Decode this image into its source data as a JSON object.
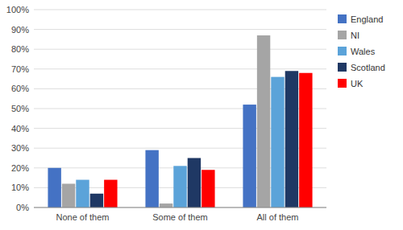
{
  "chart_data": {
    "type": "bar",
    "categories": [
      "None of them",
      "Some of them",
      "All of them"
    ],
    "series": [
      {
        "name": "England",
        "color": "#4472C4",
        "values": [
          0.2,
          0.29,
          0.52
        ]
      },
      {
        "name": "NI",
        "color": "#A5A5A5",
        "values": [
          0.12,
          0.02,
          0.87
        ]
      },
      {
        "name": "Wales",
        "color": "#5BA3D9",
        "values": [
          0.14,
          0.21,
          0.66
        ]
      },
      {
        "name": "Scotland",
        "color": "#1F3864",
        "values": [
          0.07,
          0.25,
          0.69
        ]
      },
      {
        "name": "UK",
        "color": "#FF0000",
        "values": [
          0.14,
          0.19,
          0.68
        ]
      }
    ],
    "ylim": [
      0,
      1
    ],
    "yticks": [
      {
        "value": 0,
        "label": "0%"
      },
      {
        "value": 0.1,
        "label": "10%"
      },
      {
        "value": 0.2,
        "label": "20%"
      },
      {
        "value": 0.3,
        "label": "30%"
      },
      {
        "value": 0.4,
        "label": "40%"
      },
      {
        "value": 0.5,
        "label": "50%"
      },
      {
        "value": 0.6,
        "label": "60%"
      },
      {
        "value": 0.7,
        "label": "70%"
      },
      {
        "value": 0.8,
        "label": "80%"
      },
      {
        "value": 0.9,
        "label": "90%"
      },
      {
        "value": 1,
        "label": "100%"
      }
    ],
    "grid": true,
    "legend": "right"
  }
}
